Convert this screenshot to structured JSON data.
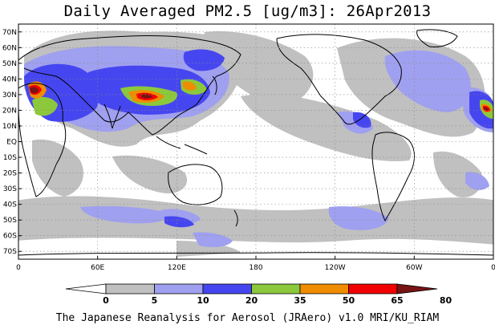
{
  "title": "Daily Averaged PM2.5 [ug/m3]: 26Apr2013",
  "footer": "The Japanese Reanalysis for Aerosol (JRAero) v1.0 MRI/KU_RIAM",
  "map": {
    "projection": "equirectangular",
    "lon_range": [
      0,
      360
    ],
    "lat_range": [
      -75,
      75
    ],
    "lat_ticks": [
      "70N",
      "60N",
      "50N",
      "40N",
      "30N",
      "20N",
      "10N",
      "EQ",
      "10S",
      "20S",
      "30S",
      "40S",
      "50S",
      "60S",
      "70S"
    ],
    "lon_ticks": [
      "0",
      "60E",
      "120E",
      "180",
      "120W",
      "60W",
      "0"
    ],
    "gridlines": true
  },
  "colorbar": {
    "levels": [
      "0",
      "5",
      "10",
      "20",
      "35",
      "50",
      "65",
      "80"
    ],
    "colors": [
      "#ffffff",
      "#c0c0c0",
      "#a0a0f0",
      "#4646f0",
      "#8cc83c",
      "#f08c00",
      "#f00000",
      "#781414"
    ],
    "extend": "both"
  }
}
